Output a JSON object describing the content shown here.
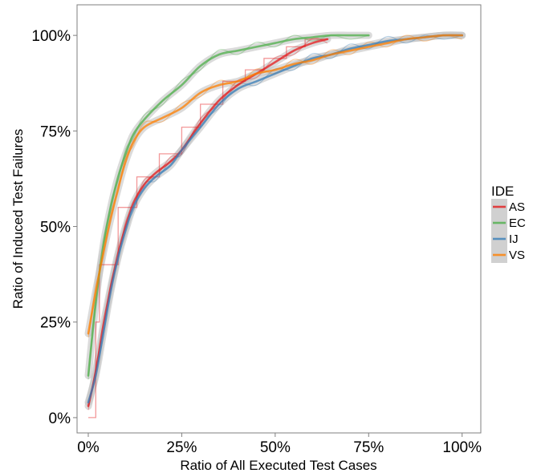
{
  "chart_data": {
    "type": "line",
    "title": "",
    "xlabel": "Ratio of All Executed Test Cases",
    "ylabel": "Ratio of Induced Test Failures",
    "xlim": [
      -0.03,
      1.05
    ],
    "ylim": [
      -0.04,
      1.08
    ],
    "x_ticks": [
      0,
      0.25,
      0.5,
      0.75,
      1.0
    ],
    "x_tick_labels": [
      "0%",
      "25%",
      "50%",
      "75%",
      "100%"
    ],
    "y_ticks": [
      0,
      0.25,
      0.5,
      0.75,
      1.0
    ],
    "y_tick_labels": [
      "0%",
      "25%",
      "50%",
      "75%",
      "100%"
    ],
    "grid": false,
    "legend": {
      "title": "IDE",
      "position": "right"
    },
    "series": [
      {
        "name": "AS",
        "color": "#e41a1c",
        "smooth": [
          [
            0.0,
            0.03
          ],
          [
            0.02,
            0.12
          ],
          [
            0.04,
            0.24
          ],
          [
            0.06,
            0.34
          ],
          [
            0.08,
            0.43
          ],
          [
            0.1,
            0.5
          ],
          [
            0.12,
            0.56
          ],
          [
            0.15,
            0.61
          ],
          [
            0.18,
            0.64
          ],
          [
            0.22,
            0.67
          ],
          [
            0.25,
            0.7
          ],
          [
            0.3,
            0.77
          ],
          [
            0.35,
            0.83
          ],
          [
            0.4,
            0.87
          ],
          [
            0.45,
            0.9
          ],
          [
            0.5,
            0.93
          ],
          [
            0.55,
            0.96
          ],
          [
            0.6,
            0.98
          ],
          [
            0.64,
            0.99
          ]
        ],
        "step": [
          [
            0.0,
            0.0
          ],
          [
            0.02,
            0.0
          ],
          [
            0.02,
            0.25
          ],
          [
            0.03,
            0.25
          ],
          [
            0.03,
            0.4
          ],
          [
            0.08,
            0.4
          ],
          [
            0.08,
            0.55
          ],
          [
            0.13,
            0.55
          ],
          [
            0.13,
            0.63
          ],
          [
            0.19,
            0.63
          ],
          [
            0.19,
            0.69
          ],
          [
            0.25,
            0.69
          ],
          [
            0.25,
            0.76
          ],
          [
            0.3,
            0.76
          ],
          [
            0.3,
            0.82
          ],
          [
            0.36,
            0.82
          ],
          [
            0.36,
            0.88
          ],
          [
            0.42,
            0.88
          ],
          [
            0.42,
            0.91
          ],
          [
            0.47,
            0.91
          ],
          [
            0.47,
            0.94
          ],
          [
            0.53,
            0.94
          ],
          [
            0.53,
            0.97
          ],
          [
            0.58,
            0.97
          ],
          [
            0.58,
            0.99
          ],
          [
            0.64,
            0.99
          ]
        ]
      },
      {
        "name": "EC",
        "color": "#4daf4a",
        "smooth": [
          [
            0.0,
            0.11
          ],
          [
            0.02,
            0.3
          ],
          [
            0.04,
            0.45
          ],
          [
            0.06,
            0.55
          ],
          [
            0.08,
            0.63
          ],
          [
            0.1,
            0.69
          ],
          [
            0.12,
            0.74
          ],
          [
            0.15,
            0.78
          ],
          [
            0.2,
            0.83
          ],
          [
            0.25,
            0.87
          ],
          [
            0.3,
            0.92
          ],
          [
            0.35,
            0.95
          ],
          [
            0.4,
            0.96
          ],
          [
            0.45,
            0.97
          ],
          [
            0.5,
            0.98
          ],
          [
            0.55,
            0.99
          ],
          [
            0.6,
            0.995
          ],
          [
            0.65,
            1.0
          ],
          [
            0.7,
            1.0
          ],
          [
            0.75,
            1.0
          ]
        ]
      },
      {
        "name": "IJ",
        "color": "#377eb8",
        "smooth": [
          [
            0.0,
            0.04
          ],
          [
            0.02,
            0.11
          ],
          [
            0.04,
            0.22
          ],
          [
            0.06,
            0.33
          ],
          [
            0.08,
            0.42
          ],
          [
            0.1,
            0.49
          ],
          [
            0.12,
            0.55
          ],
          [
            0.15,
            0.6
          ],
          [
            0.18,
            0.63
          ],
          [
            0.22,
            0.66
          ],
          [
            0.25,
            0.7
          ],
          [
            0.3,
            0.76
          ],
          [
            0.35,
            0.82
          ],
          [
            0.4,
            0.86
          ],
          [
            0.45,
            0.88
          ],
          [
            0.5,
            0.9
          ],
          [
            0.55,
            0.92
          ],
          [
            0.6,
            0.94
          ],
          [
            0.65,
            0.95
          ],
          [
            0.7,
            0.965
          ],
          [
            0.75,
            0.975
          ],
          [
            0.8,
            0.985
          ],
          [
            0.85,
            0.99
          ],
          [
            0.9,
            0.995
          ],
          [
            0.95,
            1.0
          ],
          [
            1.0,
            1.0
          ]
        ]
      },
      {
        "name": "VS",
        "color": "#ff7f00",
        "smooth": [
          [
            0.0,
            0.22
          ],
          [
            0.02,
            0.33
          ],
          [
            0.04,
            0.43
          ],
          [
            0.06,
            0.52
          ],
          [
            0.08,
            0.6
          ],
          [
            0.1,
            0.67
          ],
          [
            0.12,
            0.72
          ],
          [
            0.15,
            0.76
          ],
          [
            0.2,
            0.785
          ],
          [
            0.25,
            0.81
          ],
          [
            0.3,
            0.85
          ],
          [
            0.35,
            0.87
          ],
          [
            0.4,
            0.88
          ],
          [
            0.45,
            0.9
          ],
          [
            0.5,
            0.91
          ],
          [
            0.55,
            0.925
          ],
          [
            0.6,
            0.935
          ],
          [
            0.65,
            0.95
          ],
          [
            0.7,
            0.96
          ],
          [
            0.75,
            0.97
          ],
          [
            0.8,
            0.98
          ],
          [
            0.85,
            0.99
          ],
          [
            0.9,
            0.995
          ],
          [
            0.95,
            1.0
          ],
          [
            1.0,
            1.0
          ]
        ]
      }
    ]
  }
}
